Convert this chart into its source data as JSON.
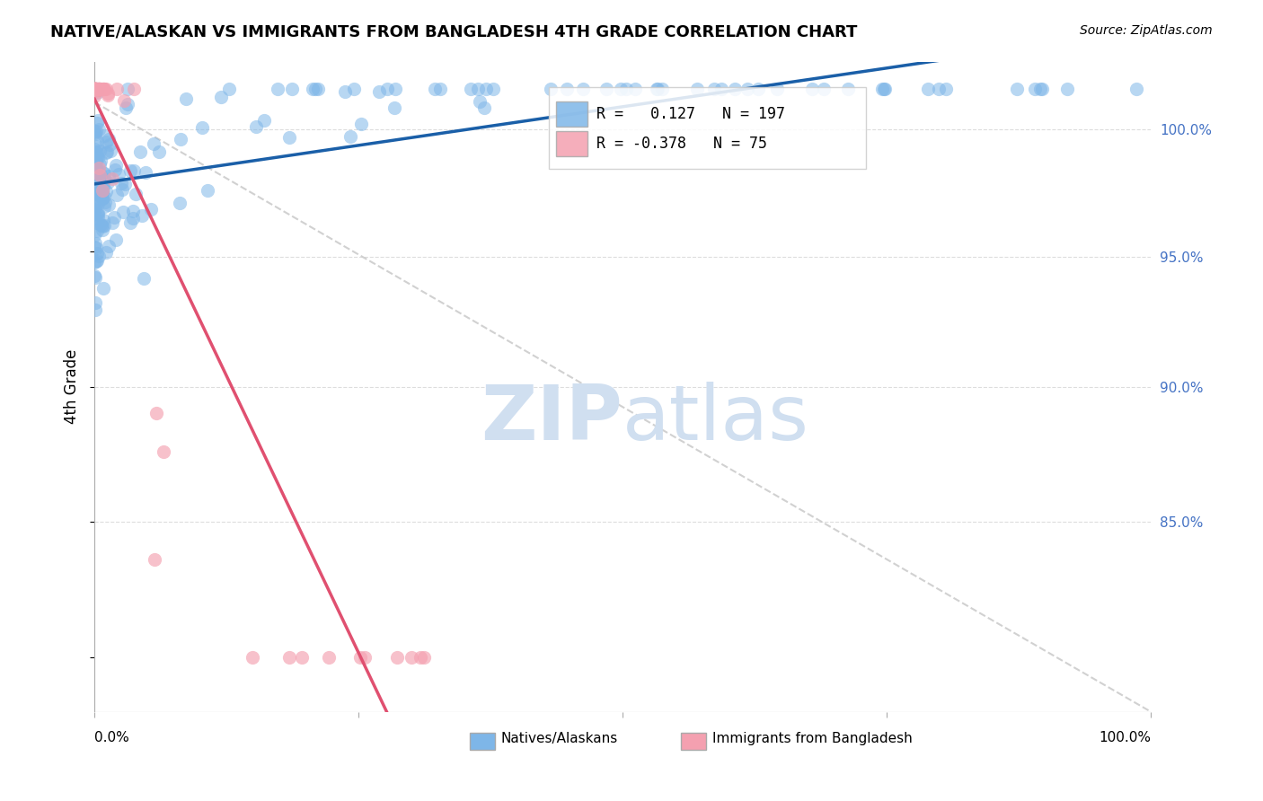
{
  "title": "NATIVE/ALASKAN VS IMMIGRANTS FROM BANGLADESH 4TH GRADE CORRELATION CHART",
  "source": "Source: ZipAtlas.com",
  "ylabel": "4th Grade",
  "ylabel_right_labels": [
    "100.0%",
    "95.0%",
    "90.0%",
    "85.0%"
  ],
  "ylabel_right_positions": [
    0.995,
    0.948,
    0.9,
    0.85
  ],
  "r_native": 0.127,
  "n_native": 197,
  "r_bangladesh": -0.378,
  "n_bangladesh": 75,
  "color_native": "#7EB6E8",
  "color_bangladesh": "#F4A0B0",
  "trendline_native_color": "#1a5fa8",
  "trendline_bangladesh_color": "#e05070",
  "diagonal_color": "#cccccc",
  "background_color": "#ffffff",
  "grid_color": "#dddddd",
  "legend_label_native": "Natives/Alaskans",
  "legend_label_bangladesh": "Immigrants from Bangladesh",
  "watermark_zip": "ZIP",
  "watermark_atlas": "atlas",
  "watermark_color": "#d0dff0",
  "xlim": [
    0.0,
    1.0
  ],
  "ylim": [
    0.78,
    1.02
  ],
  "seed": 42
}
